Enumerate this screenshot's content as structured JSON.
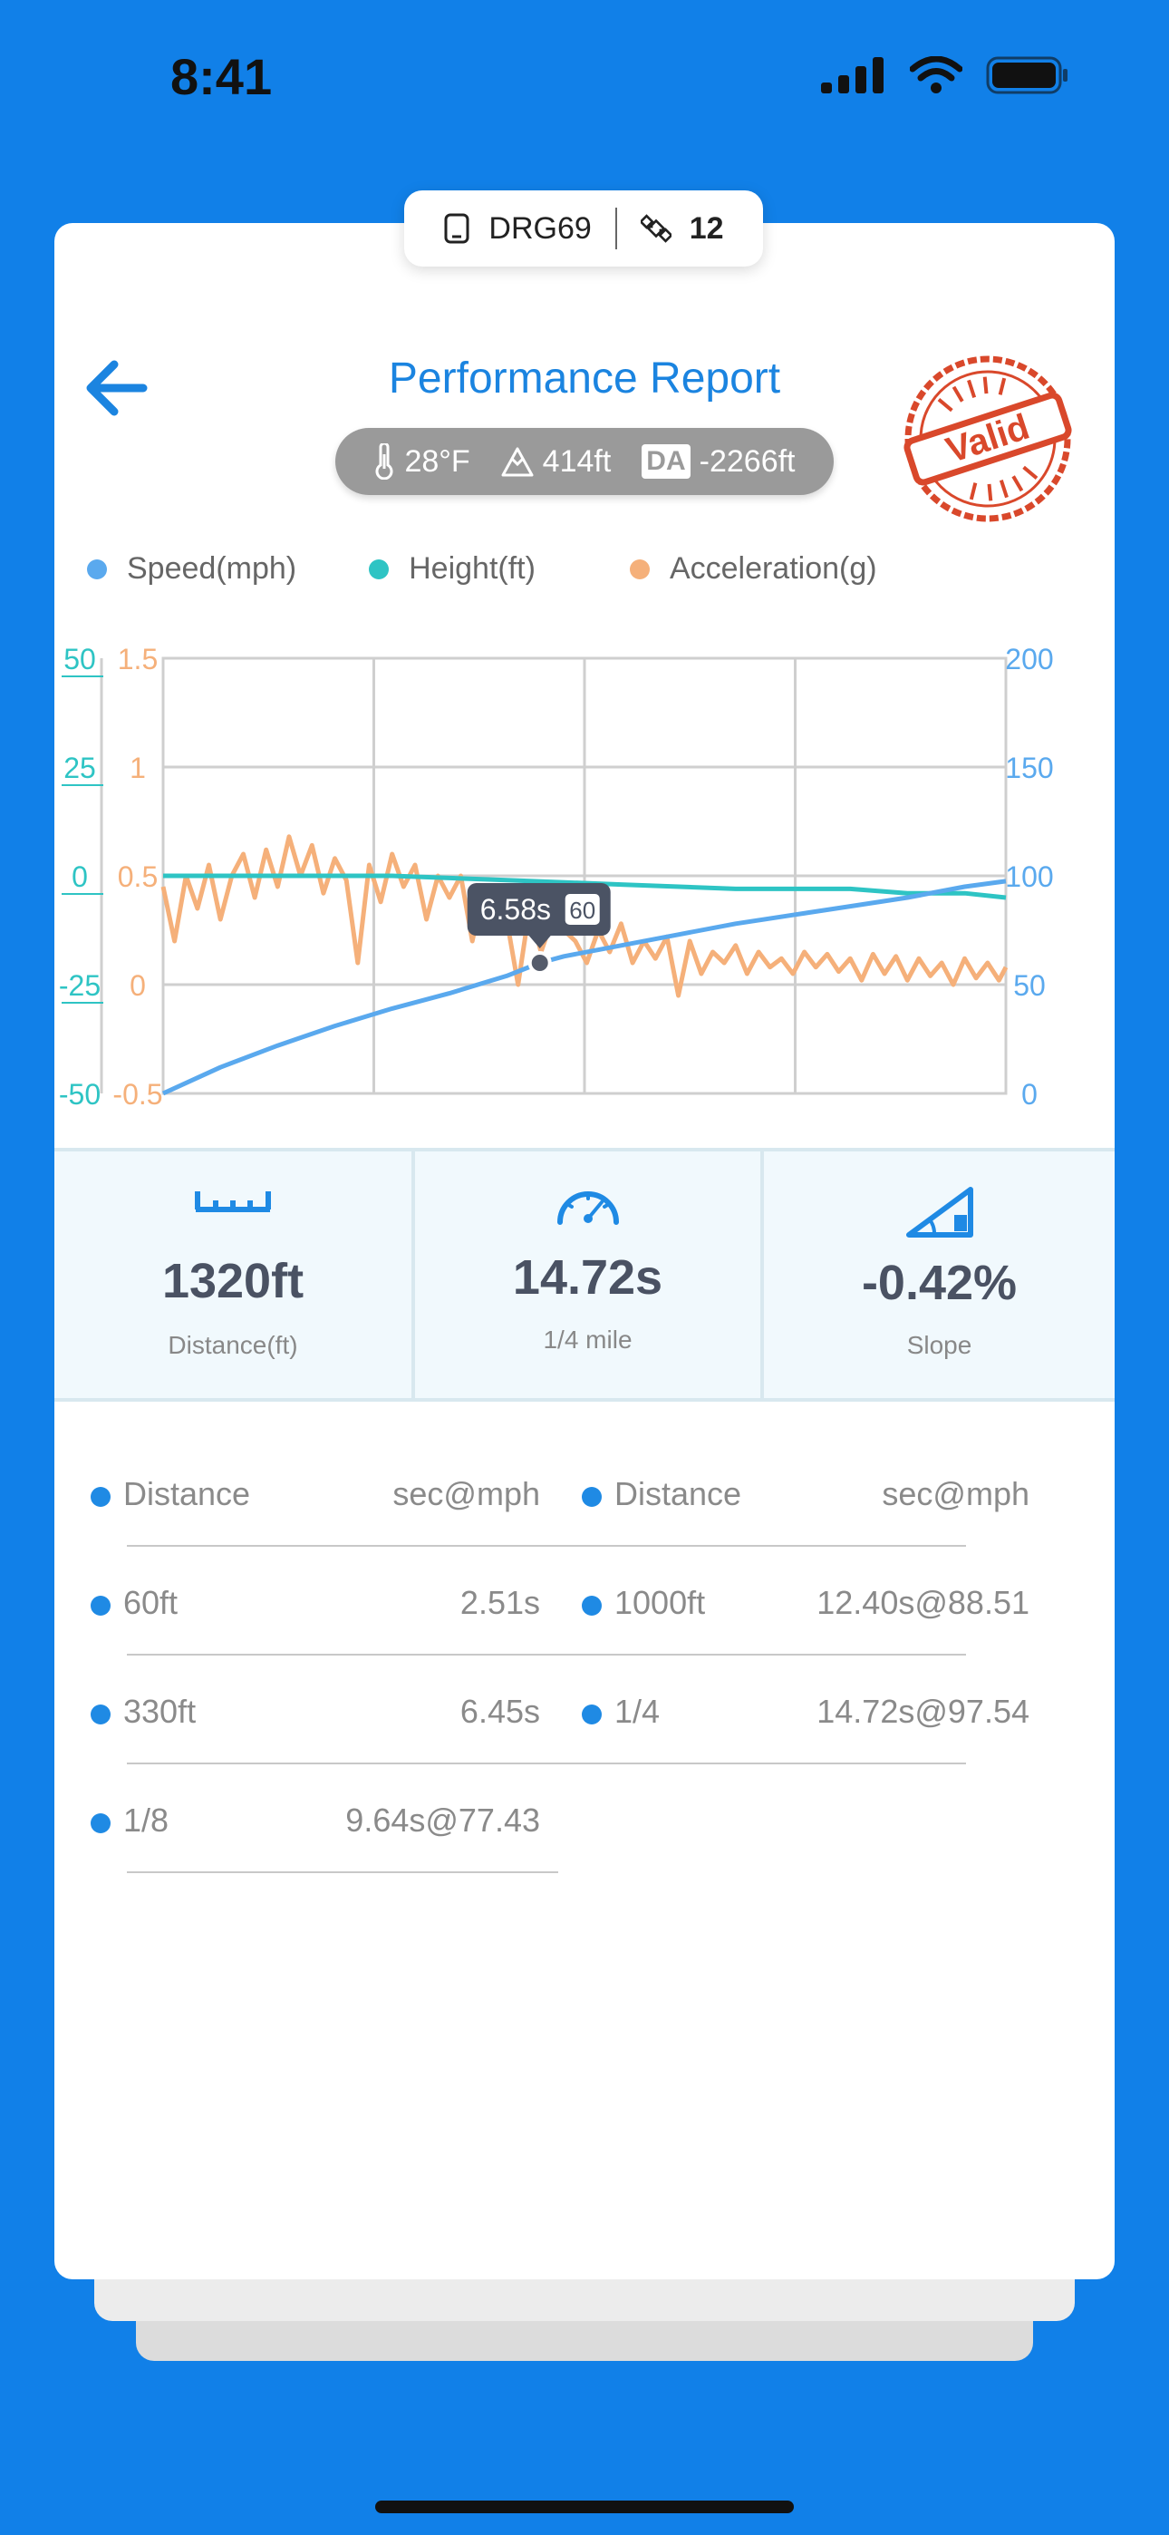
{
  "status_bar": {
    "time": "8:41"
  },
  "device": {
    "name": "DRG69",
    "satellites": "12"
  },
  "header": {
    "title": "Performance Report",
    "stamp_text": "Valid"
  },
  "conditions": {
    "temperature": "28°F",
    "altitude": "414ft",
    "da_label": "DA",
    "da_value": "-2266ft"
  },
  "legend": [
    {
      "label": "Speed(mph)",
      "color": "#5aa9ee"
    },
    {
      "label": "Height(ft)",
      "color": "#2ec4c4"
    },
    {
      "label": "Acceleration(g)",
      "color": "#f5b07a"
    }
  ],
  "chart_data": {
    "type": "line",
    "title": "",
    "axes": {
      "height_left": {
        "ticks": [
          "50",
          "25",
          "0",
          "-25",
          "-50"
        ],
        "range": [
          -50,
          50
        ],
        "color": "#2ec4c4"
      },
      "acceleration_left": {
        "ticks": [
          "1.5",
          "1",
          "0.5",
          "0",
          "-0.5"
        ],
        "range": [
          -0.5,
          1.5
        ],
        "color": "#f5b07a"
      },
      "speed_right": {
        "ticks": [
          "200",
          "150",
          "100",
          "50",
          "0"
        ],
        "range": [
          0,
          200
        ],
        "color": "#5aa9ee"
      }
    },
    "x_range": [
      0,
      14.72
    ],
    "grid": true,
    "tooltip": {
      "time": "6.58s",
      "speed": "60",
      "x": 6.58,
      "y": 60
    },
    "series": [
      {
        "name": "Speed(mph)",
        "axis": "speed_right",
        "color": "#5aa9ee",
        "x": [
          0,
          1,
          2,
          3,
          4,
          5,
          6,
          6.58,
          7,
          8,
          9,
          10,
          11,
          12,
          13,
          14,
          14.72
        ],
        "y": [
          0,
          12,
          22,
          31,
          39,
          46,
          54,
          60,
          63,
          68,
          73,
          78,
          82,
          86,
          90,
          95,
          97.54
        ]
      },
      {
        "name": "Height(ft)",
        "axis": "height_left",
        "color": "#2ec4c4",
        "x": [
          0,
          2,
          4,
          6,
          8,
          10,
          11,
          12,
          13,
          14,
          14.72
        ],
        "y": [
          0,
          0,
          0,
          -1,
          -2,
          -3,
          -3,
          -3,
          -4,
          -4,
          -5
        ]
      },
      {
        "name": "Acceleration(g)",
        "axis": "acceleration_left",
        "color": "#f5b07a",
        "x": [
          0,
          0.2,
          0.4,
          0.6,
          0.8,
          1.0,
          1.2,
          1.4,
          1.6,
          1.8,
          2.0,
          2.2,
          2.4,
          2.6,
          2.8,
          3.0,
          3.2,
          3.4,
          3.6,
          3.8,
          4.0,
          4.2,
          4.4,
          4.6,
          4.8,
          5.0,
          5.2,
          5.4,
          5.6,
          5.8,
          6.0,
          6.2,
          6.4,
          6.6,
          6.8,
          7.0,
          7.2,
          7.4,
          7.6,
          7.8,
          8.0,
          8.2,
          8.4,
          8.6,
          8.8,
          9.0,
          9.2,
          9.4,
          9.6,
          9.8,
          10.0,
          10.2,
          10.4,
          10.6,
          10.8,
          11.0,
          11.2,
          11.4,
          11.6,
          11.8,
          12.0,
          12.2,
          12.4,
          12.6,
          12.8,
          13.0,
          13.2,
          13.4,
          13.6,
          13.8,
          14.0,
          14.2,
          14.4,
          14.6,
          14.72
        ],
        "y": [
          0.45,
          0.2,
          0.5,
          0.35,
          0.55,
          0.3,
          0.5,
          0.6,
          0.4,
          0.62,
          0.45,
          0.68,
          0.5,
          0.64,
          0.42,
          0.58,
          0.48,
          0.1,
          0.55,
          0.38,
          0.6,
          0.45,
          0.55,
          0.3,
          0.5,
          0.4,
          0.5,
          0.2,
          0.45,
          0.35,
          0.3,
          0.0,
          0.35,
          0.15,
          0.3,
          0.25,
          0.2,
          0.1,
          0.25,
          0.15,
          0.28,
          0.1,
          0.2,
          0.12,
          0.22,
          -0.05,
          0.2,
          0.05,
          0.15,
          0.1,
          0.18,
          0.05,
          0.15,
          0.08,
          0.12,
          0.05,
          0.15,
          0.08,
          0.14,
          0.06,
          0.12,
          0.02,
          0.14,
          0.05,
          0.13,
          0.02,
          0.12,
          0.04,
          0.1,
          0.0,
          0.12,
          0.03,
          0.1,
          0.02,
          0.08
        ]
      }
    ]
  },
  "metrics": [
    {
      "value": "1320ft",
      "label": "Distance(ft)",
      "icon": "ruler-icon"
    },
    {
      "value": "14.72s",
      "label": "1/4 mile",
      "icon": "speedometer-icon"
    },
    {
      "value": "-0.42%",
      "label": "Slope",
      "icon": "slope-icon"
    }
  ],
  "splits": {
    "header": {
      "distance": "Distance",
      "value": "sec@mph"
    },
    "left": [
      {
        "distance": "60ft",
        "value": "2.51s"
      },
      {
        "distance": "330ft",
        "value": "6.45s"
      },
      {
        "distance": "1/8",
        "value": "9.64s@77.43"
      }
    ],
    "right": [
      {
        "distance": "1000ft",
        "value": "12.40s@88.51"
      },
      {
        "distance": "1/4",
        "value": "14.72s@97.54"
      }
    ]
  },
  "colors": {
    "background": "#1180e8",
    "accent": "#1b84e0",
    "stamp": "#d9482b"
  }
}
